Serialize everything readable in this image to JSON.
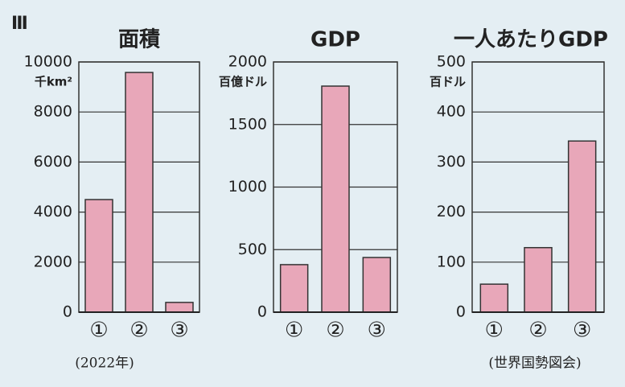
{
  "section": "Ⅲ",
  "chart_data": [
    {
      "type": "bar",
      "title": "面積",
      "y_label": "千km²",
      "categories": [
        "①",
        "②",
        "③"
      ],
      "values": [
        4500,
        9580,
        390
      ],
      "color": "#e8a7b9",
      "ylim": [
        0,
        10000
      ],
      "yticks": [
        0,
        2000,
        4000,
        6000,
        8000,
        10000
      ],
      "grid": true
    },
    {
      "type": "bar",
      "title": "GDP",
      "y_label": "百億ドル",
      "categories": [
        "①",
        "②",
        "③"
      ],
      "values": [
        380,
        1807,
        437
      ],
      "color": "#e8a7b9",
      "ylim": [
        0,
        2000
      ],
      "yticks": [
        0,
        500,
        1000,
        1500,
        2000
      ],
      "grid": true
    },
    {
      "type": "bar",
      "title": "一人あたりGDP",
      "y_label": "百ドル",
      "categories": [
        "①",
        "②",
        "③"
      ],
      "values": [
        56,
        129,
        342
      ],
      "color": "#e8a7b9",
      "ylim": [
        0,
        500
      ],
      "yticks": [
        0,
        100,
        200,
        300,
        400,
        500
      ],
      "grid": true
    }
  ],
  "year_note": "(2022年)",
  "source": "(世界国勢図会)"
}
